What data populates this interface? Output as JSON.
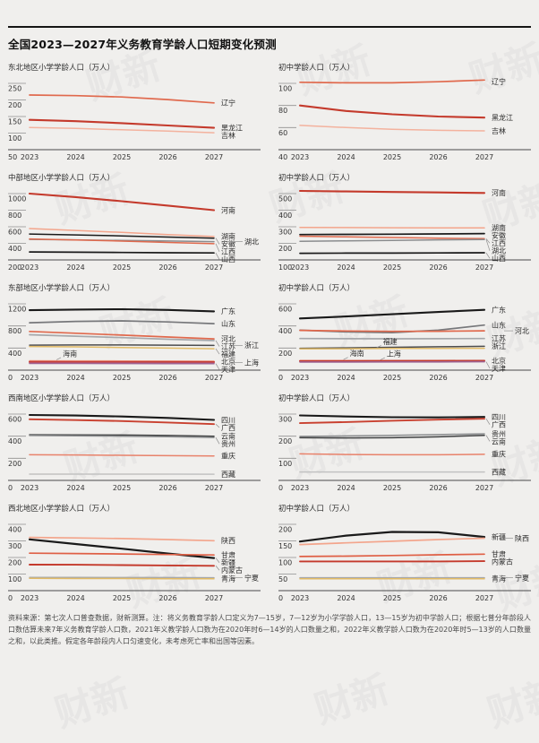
{
  "header": {
    "title": "全国2023—2027年义务教育学龄人口短期变化预测"
  },
  "watermark": {
    "text": "财新"
  },
  "years": [
    "2023",
    "2024",
    "2025",
    "2026",
    "2027"
  ],
  "footer": {
    "source": "资料来源：第七次人口普查数据，财新测算。注：将义务教育学龄人口定义为7—15岁，7—12岁为小学学龄人口，13—15岁为初中学龄人口；根据七普分年龄段人口数估算未来7年义务教育学龄人口数，2021年义教学龄人口数为在2020年时6—14岁的人口数量之和，2022年义教学龄人口数为在2020年时5—13岁的人口数量之和，以此类推。假定各年龄段内人口匀速变化，未考虑死亡率和出国等因素。"
  },
  "chart_data": [
    {
      "type": "line",
      "region": "东北地区",
      "title": "东北地区小学学龄人口（万人）",
      "yticks": [
        50,
        100,
        150,
        200,
        250
      ],
      "series": [
        {
          "name": "辽宁",
          "color": "#e0694d",
          "width": 1.7,
          "values": [
            215,
            213,
            209,
            201,
            191
          ],
          "label": {
            "col": 1
          }
        },
        {
          "name": "黑龙江",
          "color": "#c43a2c",
          "width": 2.1,
          "values": [
            140,
            136,
            130,
            123,
            116
          ],
          "label": {
            "col": 1
          }
        },
        {
          "name": "吉林",
          "color": "#f3b29e",
          "width": 1.5,
          "values": [
            117,
            114,
            110,
            106,
            101
          ],
          "label": {
            "col": 1
          }
        }
      ]
    },
    {
      "type": "line",
      "region": "东北地区",
      "title": "初中学龄人口（万人）",
      "yticks": [
        40,
        60,
        80,
        100
      ],
      "series": [
        {
          "name": "辽宁",
          "color": "#e0694d",
          "width": 1.7,
          "values": [
            101,
            100.5,
            100.5,
            101.5,
            103
          ],
          "label": {
            "col": 1
          }
        },
        {
          "name": "黑龙江",
          "color": "#c43a2c",
          "width": 2.1,
          "values": [
            80,
            75,
            72,
            70,
            69
          ],
          "label": {
            "col": 1
          }
        },
        {
          "name": "吉林",
          "color": "#f3b29e",
          "width": 1.5,
          "values": [
            62,
            60,
            58.5,
            57.5,
            57
          ],
          "label": {
            "col": 1
          }
        }
      ]
    },
    {
      "type": "line",
      "region": "中部地区",
      "title": "中部地区小学学龄人口（万人）",
      "yticks": [
        200,
        400,
        600,
        800,
        1000
      ],
      "series": [
        {
          "name": "河南",
          "color": "#c43a2c",
          "width": 2.1,
          "values": [
            1000,
            958,
            908,
            855,
            800
          ],
          "label": {
            "col": 1
          }
        },
        {
          "name": "湖南",
          "color": "#f3a58c",
          "width": 1.5,
          "values": [
            578,
            556,
            532,
            506,
            482
          ],
          "label": {
            "col": 1
          }
        },
        {
          "name": "安徽",
          "color": "#1a1a1a",
          "width": 1.5,
          "values": [
            512,
            502,
            490,
            476,
            463
          ],
          "label": {
            "col": 1
          }
        },
        {
          "name": "湖北",
          "color": "#8a8c8e",
          "width": 1.5,
          "values": [
            448,
            442,
            435,
            428,
            420
          ],
          "label": {
            "col": 2
          }
        },
        {
          "name": "江西",
          "color": "#e0694d",
          "width": 1.5,
          "values": [
            453,
            441,
            427,
            411,
            396
          ],
          "label": {
            "col": 1
          }
        },
        {
          "name": "山西",
          "color": "#1a1a1a",
          "width": 1.7,
          "values": [
            296,
            293,
            290,
            287,
            284
          ],
          "label": {
            "col": 1
          }
        }
      ]
    },
    {
      "type": "line",
      "region": "中部地区",
      "title": "初中学龄人口（万人）",
      "yticks": [
        100,
        200,
        300,
        400,
        500
      ],
      "series": [
        {
          "name": "河南",
          "color": "#c43a2c",
          "width": 2.1,
          "values": [
            516,
            513,
            510,
            507,
            504
          ],
          "label": {
            "col": 1
          }
        },
        {
          "name": "湖南",
          "color": "#f3a58c",
          "width": 1.5,
          "values": [
            296,
            295,
            294,
            293,
            293
          ],
          "label": {
            "col": 1
          }
        },
        {
          "name": "安徽",
          "color": "#1a1a1a",
          "width": 1.7,
          "values": [
            253,
            254,
            255,
            257,
            259
          ],
          "label": {
            "col": 1
          }
        },
        {
          "name": "江西",
          "color": "#e0694d",
          "width": 1.5,
          "values": [
            243,
            239,
            235,
            231,
            228
          ],
          "label": {
            "col": 1
          }
        },
        {
          "name": "湖北",
          "color": "#8a8c8e",
          "width": 1.5,
          "values": [
            212,
            215,
            218,
            221,
            223
          ],
          "label": {
            "col": 1
          }
        },
        {
          "name": "山西",
          "color": "#1a1a1a",
          "width": 1.7,
          "values": [
            140,
            141,
            141,
            142,
            143
          ],
          "label": {
            "col": 1
          }
        }
      ]
    },
    {
      "type": "line",
      "region": "东部地区",
      "title": "东部地区小学学龄人口（万人）",
      "yticks": [
        0,
        400,
        800,
        1200
      ],
      "series": [
        {
          "name": "广东",
          "color": "#1a1a1a",
          "width": 2.1,
          "values": [
            1085,
            1097,
            1102,
            1090,
            1063
          ],
          "label": {
            "col": 1
          }
        },
        {
          "name": "山东",
          "color": "#77787b",
          "width": 1.7,
          "values": [
            858,
            882,
            892,
            872,
            842
          ],
          "label": {
            "col": 1
          }
        },
        {
          "name": "河北",
          "color": "#e0694d",
          "width": 1.7,
          "values": [
            700,
            668,
            634,
            600,
            566
          ],
          "label": {
            "col": 1
          }
        },
        {
          "name": "江苏",
          "color": "#a6a8ab",
          "width": 1.7,
          "values": [
            640,
            615,
            588,
            560,
            535
          ],
          "label": {
            "col": 1
          }
        },
        {
          "name": "浙江",
          "color": "#4d4d4f",
          "width": 1.5,
          "values": [
            452,
            455,
            456,
            453,
            448
          ],
          "label": {
            "col": 2
          }
        },
        {
          "name": "福建",
          "color": "#e2bb66",
          "width": 1.5,
          "values": [
            428,
            421,
            411,
            399,
            388
          ],
          "label": {
            "col": 1
          }
        },
        {
          "name": "海南",
          "color": "#f3a58c",
          "width": 1.3,
          "values": [
            172,
            170,
            168,
            166,
            164
          ],
          "label": {
            "inline": {
              "xf": 0.18,
              "dy": -5
            },
            "pointer": true
          }
        },
        {
          "name": "北京",
          "color": "#c43a2c",
          "width": 2.0,
          "values": [
            152,
            151,
            150,
            149,
            148
          ],
          "label": {
            "col": 1
          }
        },
        {
          "name": "上海",
          "color": "#c24b57",
          "width": 1.6,
          "values": [
            140,
            139,
            139,
            138,
            138
          ],
          "label": {
            "col": 2
          }
        },
        {
          "name": "天津",
          "color": "#9e6492",
          "width": 1.6,
          "values": [
            122,
            121,
            120,
            119,
            118
          ],
          "label": {
            "col": 1
          }
        }
      ]
    },
    {
      "type": "line",
      "region": "东部地区",
      "title": "初中学龄人口（万人）",
      "yticks": [
        0,
        200,
        400,
        600
      ],
      "series": [
        {
          "name": "广东",
          "color": "#1a1a1a",
          "width": 2.1,
          "values": [
            468,
            486,
            506,
            526,
            546
          ],
          "label": {
            "col": 1
          }
        },
        {
          "name": "山东",
          "color": "#77787b",
          "width": 1.7,
          "values": [
            362,
            346,
            340,
            362,
            408
          ],
          "label": {
            "col": 1
          }
        },
        {
          "name": "河北",
          "color": "#e0694d",
          "width": 1.7,
          "values": [
            360,
            354,
            351,
            352,
            356
          ],
          "label": {
            "col": 2
          }
        },
        {
          "name": "江苏",
          "color": "#a6a8ab",
          "width": 1.7,
          "values": [
            286,
            285,
            284,
            285,
            286
          ],
          "label": {
            "col": 1
          }
        },
        {
          "name": "浙江",
          "color": "#4d4d4f",
          "width": 1.5,
          "values": [
            198,
            202,
            207,
            212,
            216
          ],
          "label": {
            "col": 1
          }
        },
        {
          "name": "福建",
          "color": "#e2bb66",
          "width": 1.5,
          "values": [
            192,
            194,
            196,
            197,
            198
          ],
          "label": {
            "inline": {
              "xf": 0.45,
              "dy": -5
            },
            "pointer": true
          }
        },
        {
          "name": "海南",
          "color": "#f3a58c",
          "width": 1.3,
          "values": [
            88,
            88,
            88,
            87,
            87
          ],
          "label": {
            "inline": {
              "xf": 0.27,
              "dy": -5
            },
            "pointer": true
          }
        },
        {
          "name": "上海",
          "color": "#c24b57",
          "width": 1.5,
          "values": [
            84,
            84,
            85,
            85,
            86
          ],
          "label": {
            "inline": {
              "xf": 0.47,
              "dy": -5
            },
            "pointer": true
          }
        },
        {
          "name": "北京",
          "color": "#c43a2c",
          "width": 2.0,
          "values": [
            82,
            82,
            83,
            84,
            85
          ],
          "label": {
            "col": 1
          }
        },
        {
          "name": "天津",
          "color": "#9e6492",
          "width": 1.6,
          "values": [
            74,
            74,
            75,
            75,
            76
          ],
          "label": {
            "col": 1
          }
        }
      ]
    },
    {
      "type": "line",
      "region": "西南地区",
      "title": "西南地区小学学龄人口（万人）",
      "yticks": [
        0,
        200,
        400,
        600
      ],
      "series": [
        {
          "name": "四川",
          "color": "#1a1a1a",
          "width": 2.1,
          "values": [
            592,
            587,
            578,
            565,
            547
          ],
          "label": {
            "col": 1
          }
        },
        {
          "name": "广西",
          "color": "#c9402f",
          "width": 1.9,
          "values": [
            553,
            546,
            537,
            524,
            509
          ],
          "label": {
            "col": 1
          }
        },
        {
          "name": "云南",
          "color": "#3f4041",
          "width": 1.5,
          "values": [
            413,
            412,
            410,
            406,
            399
          ],
          "label": {
            "col": 1
          }
        },
        {
          "name": "贵州",
          "color": "#8a8c8e",
          "width": 1.5,
          "values": [
            406,
            404,
            400,
            395,
            388
          ],
          "label": {
            "col": 1
          }
        },
        {
          "name": "重庆",
          "color": "#e8826b",
          "width": 1.5,
          "values": [
            232,
            230,
            227,
            224,
            221
          ],
          "label": {
            "col": 1
          }
        },
        {
          "name": "西藏",
          "color": "#c2c2c2",
          "width": 1.5,
          "values": [
            57,
            57,
            57,
            57,
            56
          ],
          "label": {
            "col": 1
          }
        }
      ]
    },
    {
      "type": "line",
      "region": "西南地区",
      "title": "初中学龄人口（万人）",
      "yticks": [
        0,
        100,
        200,
        300
      ],
      "series": [
        {
          "name": "四川",
          "color": "#1a1a1a",
          "width": 2.1,
          "values": [
            294,
            289,
            286,
            285,
            287
          ],
          "label": {
            "col": 1
          }
        },
        {
          "name": "广西",
          "color": "#c9402f",
          "width": 1.9,
          "values": [
            259,
            264,
            270,
            275,
            279
          ],
          "label": {
            "col": 1
          }
        },
        {
          "name": "贵州",
          "color": "#8a8c8e",
          "width": 1.5,
          "values": [
            199,
            201,
            204,
            207,
            211
          ],
          "label": {
            "col": 1
          }
        },
        {
          "name": "云南",
          "color": "#3f4041",
          "width": 1.5,
          "values": [
            193,
            192,
            193,
            197,
            204
          ],
          "label": {
            "col": 1
          }
        },
        {
          "name": "重庆",
          "color": "#e8826b",
          "width": 1.5,
          "values": [
            120,
            117,
            116,
            116,
            118
          ],
          "label": {
            "col": 1
          }
        },
        {
          "name": "西藏",
          "color": "#c2c2c2",
          "width": 1.5,
          "values": [
            38,
            38,
            38,
            38,
            38
          ],
          "label": {
            "col": 1
          }
        }
      ]
    },
    {
      "type": "line",
      "region": "西北地区",
      "title": "西北地区小学学龄人口（万人）",
      "yticks": [
        0,
        100,
        200,
        300,
        400
      ],
      "series": [
        {
          "name": "陕西",
          "color": "#f3a58c",
          "width": 1.7,
          "values": [
            321,
            318,
            314,
            308,
            301
          ],
          "label": {
            "col": 1
          }
        },
        {
          "name": "新疆",
          "color": "#1a1a1a",
          "width": 2.2,
          "values": [
            309,
            281,
            253,
            224,
            197
          ],
          "label": {
            "col": 1
          }
        },
        {
          "name": "甘肃",
          "color": "#df5f45",
          "width": 1.7,
          "values": [
            226,
            224,
            221,
            218,
            215
          ],
          "label": {
            "col": 1
          }
        },
        {
          "name": "内蒙古",
          "color": "#c43a2c",
          "width": 1.9,
          "values": [
            157,
            156,
            154,
            152,
            150
          ],
          "label": {
            "col": 1
          }
        },
        {
          "name": "宁夏",
          "color": "#a6a8ab",
          "width": 1.5,
          "values": [
            80,
            80,
            79,
            79,
            78
          ],
          "label": {
            "col": 2
          }
        },
        {
          "name": "青海",
          "color": "#e2bb66",
          "width": 1.5,
          "values": [
            74,
            73,
            73,
            72,
            72
          ],
          "label": {
            "col": 1
          }
        }
      ]
    },
    {
      "type": "line",
      "region": "西北地区",
      "title": "初中学龄人口（万人）",
      "yticks": [
        0,
        50,
        100,
        150,
        200
      ],
      "series": [
        {
          "name": "新疆",
          "color": "#1a1a1a",
          "width": 2.2,
          "values": [
            148,
            166,
            177,
            176,
            162
          ],
          "label": {
            "col": 1
          }
        },
        {
          "name": "陕西",
          "color": "#f3a58c",
          "width": 1.7,
          "values": [
            139,
            144,
            149,
            154,
            158
          ],
          "label": {
            "col": 2
          }
        },
        {
          "name": "甘肃",
          "color": "#df5f45",
          "width": 1.7,
          "values": [
            103,
            104,
            106,
            108,
            110
          ],
          "label": {
            "col": 1
          }
        },
        {
          "name": "内蒙古",
          "color": "#c43a2c",
          "width": 1.9,
          "values": [
            88,
            88,
            88,
            88,
            89
          ],
          "label": {
            "col": 1
          }
        },
        {
          "name": "宁夏",
          "color": "#a6a8ab",
          "width": 1.5,
          "values": [
            39,
            39,
            39,
            39,
            39
          ],
          "label": {
            "col": 2
          }
        },
        {
          "name": "青海",
          "color": "#e2bb66",
          "width": 1.5,
          "values": [
            36,
            36,
            36,
            36,
            36
          ],
          "label": {
            "col": 1
          }
        }
      ]
    }
  ]
}
